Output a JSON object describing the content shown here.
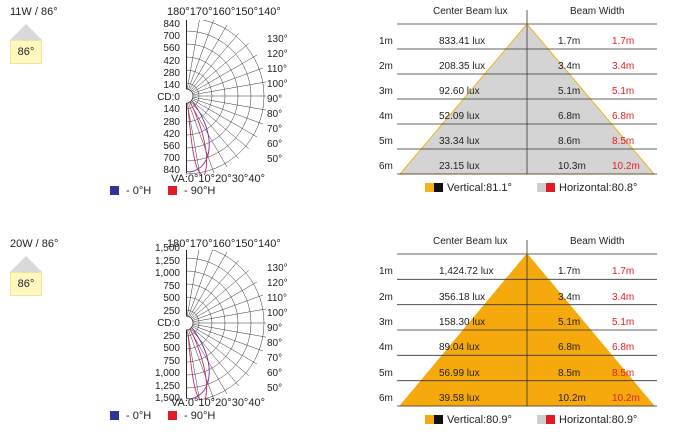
{
  "panels": [
    {
      "title": "11W / 86°",
      "badge_angle": "86°",
      "top_angles": "180°170°160°150°140°",
      "bottom_angles": "VA:0°10°20°30°40°",
      "y_ticks": [
        "840",
        "700",
        "560",
        "420",
        "280",
        "140",
        "CD:0",
        "140",
        "280",
        "420",
        "560",
        "700",
        "840"
      ],
      "right_ticks": [
        "130°",
        "120°",
        "110°",
        "100°",
        "90°",
        "80°",
        "70°",
        "60°",
        "50°"
      ],
      "legend": [
        {
          "label": " - 0°H",
          "color": "#2f3596"
        },
        {
          "label": " - 90°H",
          "color": "#e21b23"
        }
      ],
      "beam": {
        "header_lux": "Center Beam lux",
        "header_width": "Beam Width",
        "fill": "#d4d4d4",
        "edge": "#f4b21b",
        "rows": [
          {
            "dist": "1m",
            "lux": "833.41 lux",
            "w1": "1.7m",
            "w2": "1.7m"
          },
          {
            "dist": "2m",
            "lux": "208.35 lux",
            "w1": "3.4m",
            "w2": "3.4m"
          },
          {
            "dist": "3m",
            "lux": "92.60 lux",
            "w1": "5.1m",
            "w2": "5.1m"
          },
          {
            "dist": "4m",
            "lux": "52.09 lux",
            "w1": "6.8m",
            "w2": "6.8m"
          },
          {
            "dist": "5m",
            "lux": "33.34 lux",
            "w1": "8.6m",
            "w2": "8.5m"
          },
          {
            "dist": "6m",
            "lux": "23.15 lux",
            "w1": "10.3m",
            "w2": "10.2m"
          }
        ],
        "vertical": "Vertical:81.1°",
        "horizontal": "Horizontal:80.8°"
      }
    },
    {
      "title": "20W / 86°",
      "badge_angle": "86°",
      "top_angles": "180°170°160°150°140°",
      "bottom_angles": "VA:0°10°20°30°40°",
      "y_ticks": [
        "1,500",
        "1,250",
        "1,000",
        "750",
        "500",
        "250",
        "CD:0",
        "250",
        "500",
        "750",
        "1,000",
        "1,250",
        "1,500"
      ],
      "right_ticks": [
        "130°",
        "120°",
        "110°",
        "100°",
        "90°",
        "80°",
        "70°",
        "60°",
        "50°"
      ],
      "legend": [
        {
          "label": " - 0°H",
          "color": "#2f3596"
        },
        {
          "label": " - 90°H",
          "color": "#e21b23"
        }
      ],
      "beam": {
        "header_lux": "Center Beam lux",
        "header_width": "Beam Width",
        "fill": "#f5a90c",
        "edge": "#f5a90c",
        "rows": [
          {
            "dist": "1m",
            "lux": "1,424.72 lux",
            "w1": "1.7m",
            "w2": "1.7m"
          },
          {
            "dist": "2m",
            "lux": "356.18 lux",
            "w1": "3.4m",
            "w2": "3.4m"
          },
          {
            "dist": "3m",
            "lux": "158.30 lux",
            "w1": "5.1m",
            "w2": "5.1m"
          },
          {
            "dist": "4m",
            "lux": "89.04 lux",
            "w1": "6.8m",
            "w2": "6.8m"
          },
          {
            "dist": "5m",
            "lux": "56.99 lux",
            "w1": "8.5m",
            "w2": "8.5m"
          },
          {
            "dist": "6m",
            "lux": "39.58 lux",
            "w1": "10.2m",
            "w2": "10.2m"
          }
        ],
        "vertical": "Vertical:80.9°",
        "horizontal": "Horizontal:80.9°"
      }
    }
  ]
}
